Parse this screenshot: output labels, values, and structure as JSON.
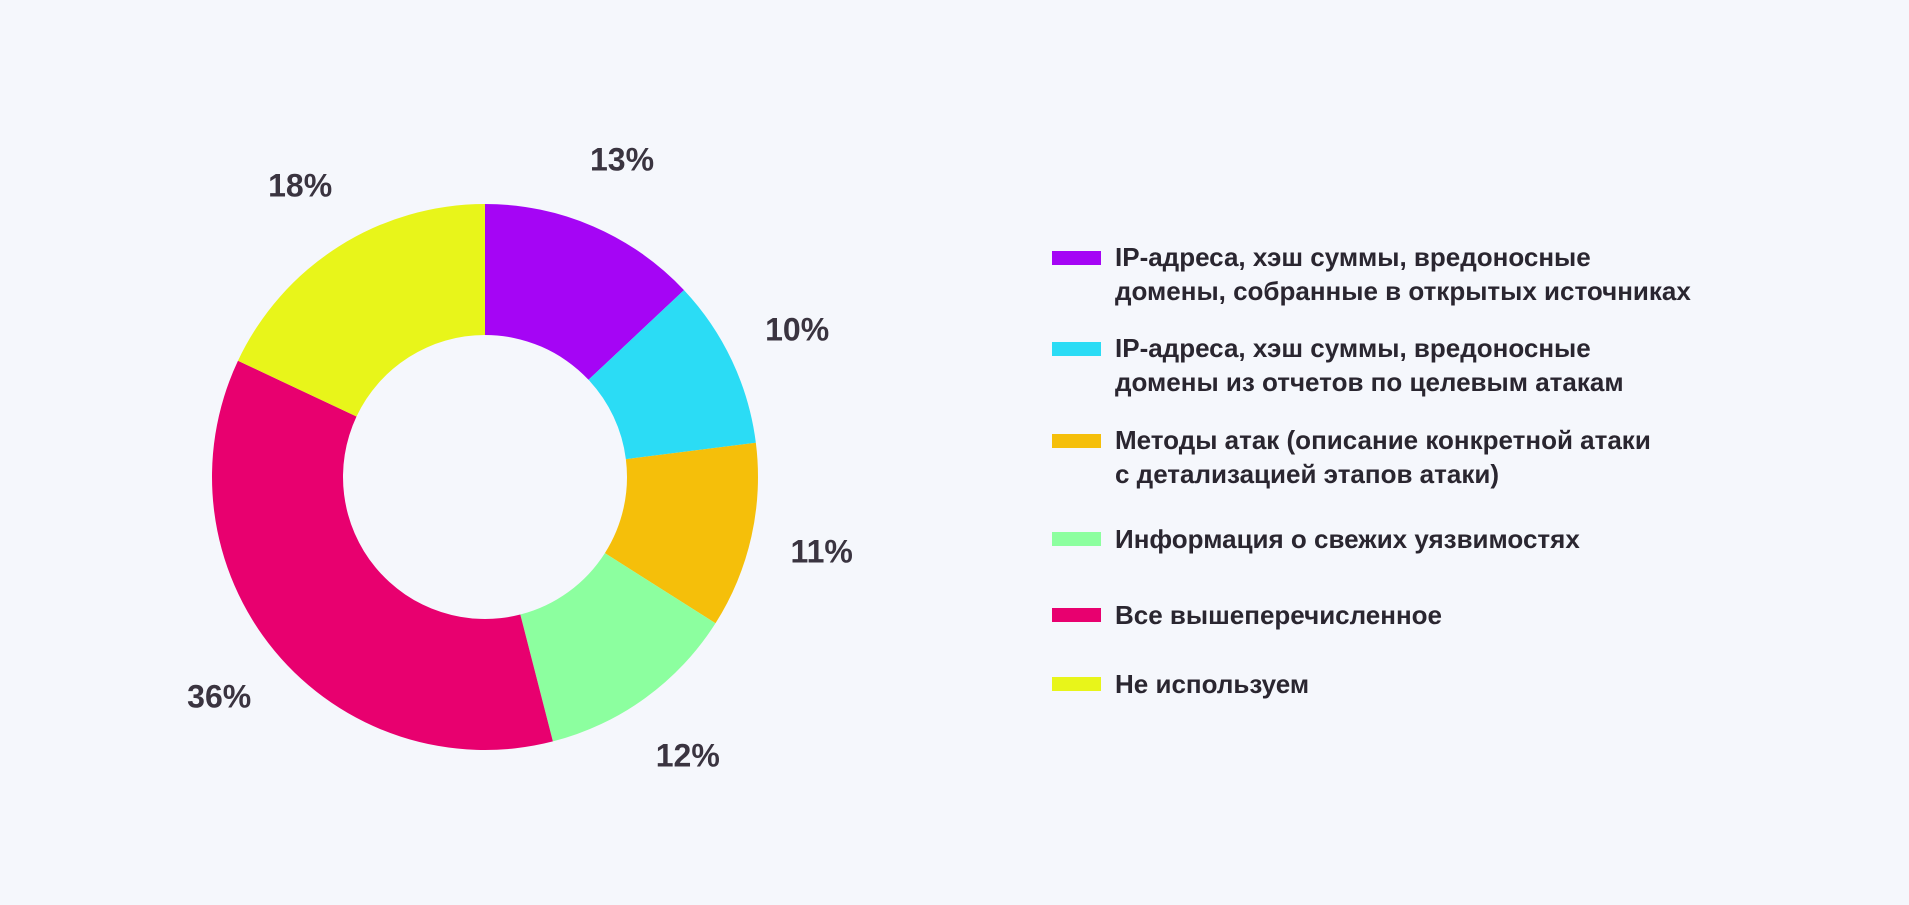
{
  "chart_data": {
    "type": "pie",
    "variant": "donut",
    "title": "",
    "start": "top",
    "direction": "clockwise",
    "legend_position": "right",
    "slices": [
      {
        "label": "IP-адреса, хэш суммы, вредоносные\nдомены, собранные в открытых источниках",
        "value": 13,
        "value_label": "13%",
        "color": "#a505f5"
      },
      {
        "label": " IP-адреса, хэш суммы, вредоносные\nдомены из отчетов по целевым атакам",
        "value": 10,
        "value_label": "10%",
        "color": "#2bdcf5"
      },
      {
        "label": "Методы атак (описание конкретной атаки\nс детализацией этапов атаки)",
        "value": 11,
        "value_label": "11%",
        "color": "#f5bf0a"
      },
      {
        "label": "Информация о свежих уязвимостях",
        "value": 12,
        "value_label": "12%",
        "color": "#8cff9f"
      },
      {
        "label": "Все вышеперечисленное",
        "value": 36,
        "value_label": "36%",
        "color": "#e8006f"
      },
      {
        "label": "Не используем",
        "value": 18,
        "value_label": "18%",
        "color": "#e8f51a"
      }
    ]
  }
}
